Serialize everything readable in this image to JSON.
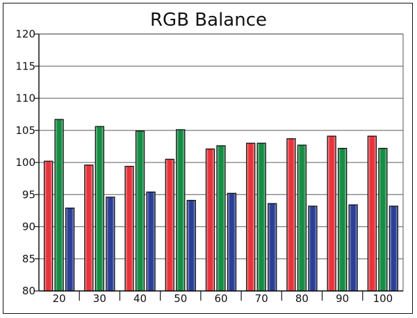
{
  "chart_data": {
    "type": "bar",
    "title": "RGB Balance",
    "xlabel": "",
    "ylabel": "",
    "ylim": [
      80,
      120
    ],
    "yticks": [
      80,
      85,
      90,
      95,
      100,
      105,
      110,
      115,
      120
    ],
    "grid": true,
    "categories": [
      "20",
      "30",
      "40",
      "50",
      "60",
      "70",
      "80",
      "90",
      "100"
    ],
    "series": [
      {
        "color": "#e8333b",
        "values": [
          100.2,
          99.6,
          99.4,
          100.5,
          102.1,
          103.0,
          103.7,
          104.1,
          104.1
        ]
      },
      {
        "color": "#168d45",
        "values": [
          106.7,
          105.6,
          104.9,
          105.1,
          102.6,
          103.0,
          102.7,
          102.2,
          102.2
        ]
      },
      {
        "color": "#2c3f96",
        "values": [
          92.9,
          94.6,
          95.4,
          94.1,
          95.2,
          93.6,
          93.2,
          93.4,
          93.2
        ]
      }
    ]
  }
}
